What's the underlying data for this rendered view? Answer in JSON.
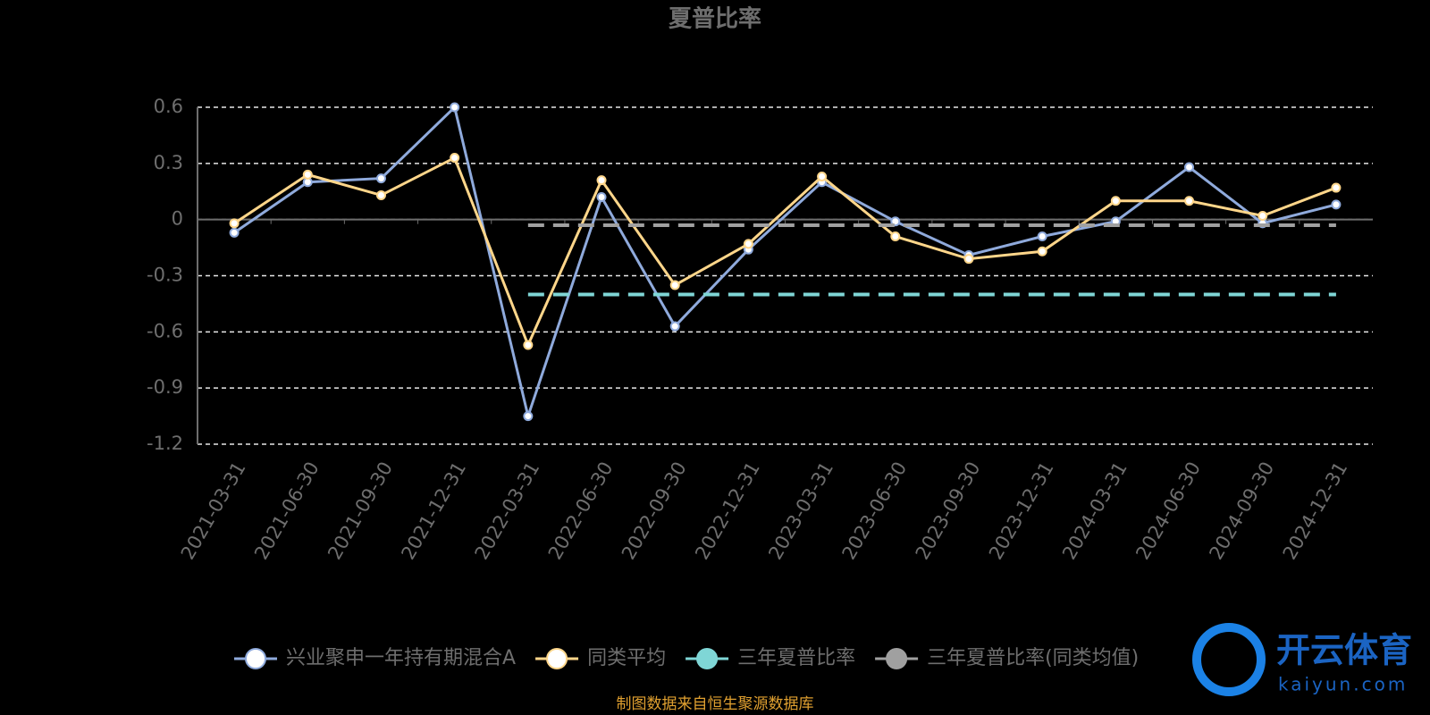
{
  "chart_data": {
    "type": "line",
    "title": "夏普比率",
    "categories": [
      "2021-03-31",
      "2021-06-30",
      "2021-09-30",
      "2021-12-31",
      "2022-03-31",
      "2022-06-30",
      "2022-09-30",
      "2022-12-31",
      "2023-03-31",
      "2023-06-30",
      "2023-09-30",
      "2023-12-31",
      "2024-03-31",
      "2024-06-30",
      "2024-09-30",
      "2024-12-31"
    ],
    "series": [
      {
        "name": "兴业聚申一年持有期混合A",
        "color": "#8faadc",
        "markers": true,
        "dashed": false,
        "values": [
          -0.07,
          0.2,
          0.22,
          0.6,
          -1.05,
          0.12,
          -0.57,
          -0.16,
          0.2,
          -0.01,
          -0.19,
          -0.09,
          -0.01,
          0.28,
          -0.02,
          0.08
        ]
      },
      {
        "name": "同类平均",
        "color": "#ffd68a",
        "markers": true,
        "dashed": false,
        "values": [
          -0.02,
          0.24,
          0.13,
          0.33,
          -0.67,
          0.21,
          -0.35,
          -0.13,
          0.23,
          -0.09,
          -0.21,
          -0.17,
          0.1,
          0.1,
          0.02,
          0.17
        ]
      },
      {
        "name": "三年夏普比率",
        "color": "#7fd6d6",
        "markers": false,
        "dashed": true,
        "values": [
          null,
          null,
          null,
          null,
          -0.4,
          -0.4,
          -0.4,
          -0.4,
          -0.4,
          -0.4,
          -0.4,
          -0.4,
          -0.4,
          -0.4,
          -0.4,
          -0.4
        ]
      },
      {
        "name": "三年夏普比率(同类均值)",
        "color": "#a0a0a0",
        "markers": false,
        "dashed": true,
        "values": [
          null,
          null,
          null,
          null,
          -0.03,
          -0.03,
          -0.03,
          -0.03,
          -0.03,
          -0.03,
          -0.03,
          -0.03,
          -0.03,
          -0.03,
          -0.03,
          -0.03
        ]
      }
    ],
    "ylim": [
      -1.2,
      0.6
    ],
    "yticks": [
      0.6,
      0.3,
      0,
      -0.3,
      -0.6,
      -0.9,
      -1.2
    ],
    "grid": true,
    "legend": "bottom",
    "source": "制图数据来自恒生聚源数据库",
    "watermark": {
      "name": "开云体育",
      "url": "kaiyun.com"
    }
  }
}
